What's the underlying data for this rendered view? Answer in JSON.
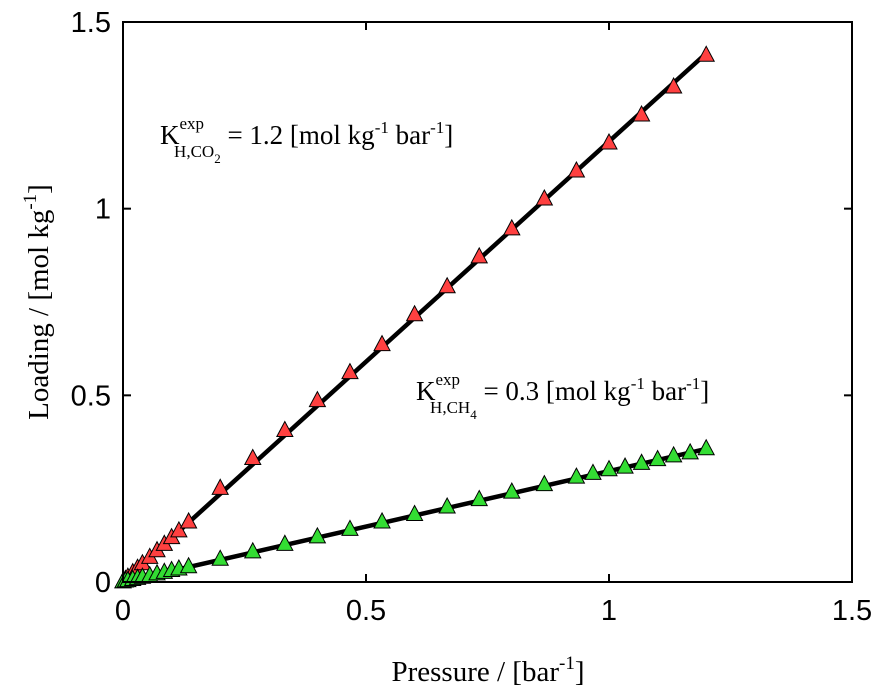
{
  "chart_data": {
    "type": "scatter",
    "xlabel": "Pressure / [bar",
    "xlabel_sup": "-1",
    "xlabel_end": "]",
    "ylabel": "Loading / [mol kg",
    "ylabel_sup": "-1",
    "ylabel_end": "]",
    "xlim": [
      0,
      1.5
    ],
    "ylim": [
      0,
      1.5
    ],
    "xticks": [
      0,
      0.5,
      1,
      1.5
    ],
    "yticks": [
      0,
      0.5,
      1,
      1.5
    ],
    "xtick_labels": [
      "0",
      "0.5",
      "1",
      "1.5"
    ],
    "ytick_labels": [
      "0",
      "0.5",
      "1",
      "1.5"
    ],
    "grid": false,
    "series": [
      {
        "color": "#ff4040",
        "marker": "triangle",
        "fit_slope": 1.18,
        "x": [
          0.0,
          0.005,
          0.01,
          0.02,
          0.03,
          0.04,
          0.055,
          0.07,
          0.085,
          0.1,
          0.115,
          0.135,
          0.2,
          0.267,
          0.333,
          0.4,
          0.467,
          0.533,
          0.6,
          0.667,
          0.733,
          0.8,
          0.867,
          0.933,
          1.0,
          1.067,
          1.133,
          1.2
        ],
        "y": [
          0.0,
          0.006,
          0.012,
          0.024,
          0.036,
          0.048,
          0.065,
          0.083,
          0.1,
          0.118,
          0.136,
          0.16,
          0.25,
          0.33,
          0.405,
          0.485,
          0.56,
          0.635,
          0.715,
          0.79,
          0.87,
          0.945,
          1.025,
          1.1,
          1.175,
          1.25,
          1.325,
          1.41
        ]
      },
      {
        "color": "#33dd33",
        "marker": "triangle",
        "fit_slope": 0.297,
        "x": [
          0.0,
          0.005,
          0.01,
          0.02,
          0.03,
          0.04,
          0.055,
          0.07,
          0.085,
          0.1,
          0.115,
          0.135,
          0.2,
          0.267,
          0.333,
          0.4,
          0.467,
          0.533,
          0.6,
          0.667,
          0.733,
          0.8,
          0.867,
          0.933,
          0.967,
          1.0,
          1.033,
          1.067,
          1.1,
          1.133,
          1.167,
          1.2
        ],
        "y": [
          0.0,
          0.002,
          0.003,
          0.006,
          0.009,
          0.012,
          0.016,
          0.021,
          0.025,
          0.03,
          0.034,
          0.04,
          0.06,
          0.08,
          0.1,
          0.12,
          0.14,
          0.16,
          0.18,
          0.2,
          0.22,
          0.24,
          0.26,
          0.28,
          0.29,
          0.3,
          0.307,
          0.317,
          0.327,
          0.337,
          0.345,
          0.356
        ]
      }
    ],
    "annotations": [
      {
        "prefix": "K",
        "sup": "exp",
        "sub": "H,CO",
        "sub2": "2",
        "text": " = 1.2 [mol kg",
        "unit_sup1": "-1",
        "text2": " bar",
        "unit_sup2": "-1",
        "text3": "]"
      },
      {
        "prefix": "K",
        "sup": "exp",
        "sub": "H,CH",
        "sub2": "4",
        "text": " = 0.3 [mol kg",
        "unit_sup1": "-1",
        "text2": " bar",
        "unit_sup2": "-1",
        "text3": "]"
      }
    ]
  }
}
